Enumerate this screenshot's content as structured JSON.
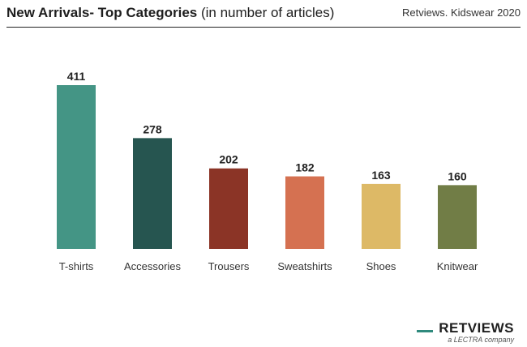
{
  "header": {
    "title_main": "New Arrivals- Top Categories",
    "title_sub": "(in number of articles)",
    "source": "Retviews. Kidswear 2020"
  },
  "logo": {
    "wordmark": "RETVIEWS",
    "tagline": "a LECTRA company",
    "accent_color": "#2f8a7d"
  },
  "chart_data": {
    "type": "bar",
    "categories": [
      "T-shirts",
      "Accessories",
      "Trousers",
      "Sweatshirts",
      "Shoes",
      "Knitwear"
    ],
    "values": [
      411,
      278,
      202,
      182,
      163,
      160
    ],
    "colors": [
      "#449585",
      "#265550",
      "#8b3426",
      "#d57151",
      "#ddb966",
      "#717d46"
    ],
    "data_labels": true,
    "ylim": [
      0,
      411
    ],
    "grid": false,
    "legend": "none"
  }
}
